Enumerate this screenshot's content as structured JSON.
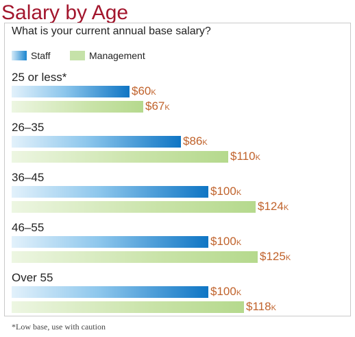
{
  "title": "Salary by Age",
  "question": "What is your current annual base salary?",
  "legend": {
    "staff": "Staff",
    "management": "Management"
  },
  "footnote": "*Low base, use with caution",
  "colors": {
    "title": "#a3162d",
    "staff": "#1a85cf",
    "management": "#c6e2a9",
    "value_label": "#c0622b"
  },
  "chart_data": {
    "type": "bar",
    "orientation": "horizontal",
    "categories": [
      "25 or less*",
      "26–35",
      "36–45",
      "46–55",
      "Over 55"
    ],
    "series": [
      {
        "name": "Staff",
        "values": [
          60,
          86,
          100,
          100,
          100
        ],
        "labels": [
          "$60",
          "$86",
          "$100",
          "$100",
          "$100"
        ]
      },
      {
        "name": "Management",
        "values": [
          67,
          110,
          124,
          125,
          118
        ],
        "labels": [
          "$67",
          "$110",
          "$124",
          "$125",
          "$118"
        ]
      }
    ],
    "value_suffix": "K",
    "title": "Salary by Age",
    "xlim": [
      0,
      130
    ],
    "grid": false,
    "legend_position": "top-left"
  }
}
